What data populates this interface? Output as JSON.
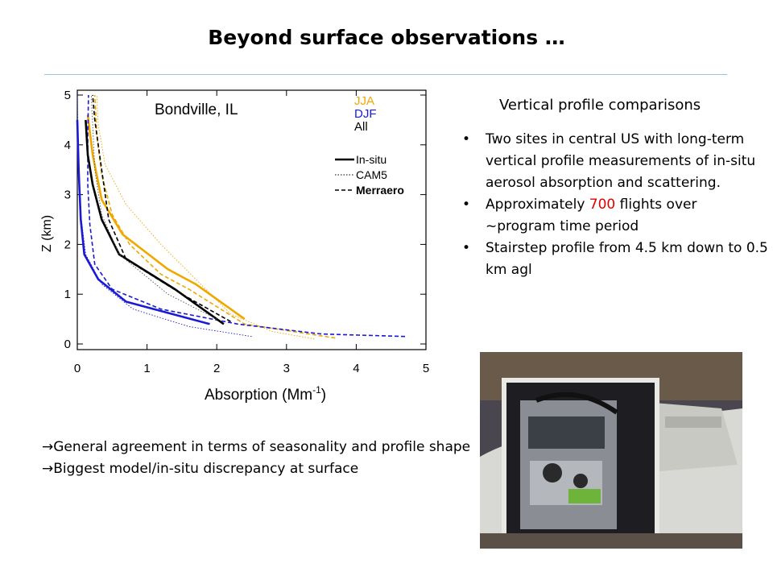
{
  "slide": {
    "title": "Beyond surface observations …",
    "heading": "Vertical profile comparisons",
    "bullets": [
      {
        "pre": "Two sites in central US with long-term vertical profile measurements of in-situ aerosol absorption and scattering.",
        "hl": "",
        "post": ""
      },
      {
        "pre": "Approximately ",
        "hl": "700",
        "post": " flights over ~program time period"
      },
      {
        "pre": "Stairstep profile from 4.5 km down to 0.5 km agl",
        "hl": "",
        "post": ""
      }
    ],
    "notes": [
      "→General agreement in terms of seasonality and profile shape",
      "→Biggest model/in-situ discrepancy at surface"
    ],
    "photo_description": "Photo: instrument rack in open aircraft door"
  },
  "chart_data": {
    "type": "line",
    "title": "Bondville, IL",
    "xlabel_main": "Absorption (Mm",
    "xlabel_sup": "-1",
    "xlabel_end": ")",
    "ylabel": "Z (km)",
    "xlim": [
      0,
      5
    ],
    "ylim": [
      0,
      5
    ],
    "xticks": [
      0,
      1,
      2,
      3,
      4,
      5
    ],
    "yticks": [
      0,
      1,
      2,
      3,
      4,
      5
    ],
    "season_legend": [
      {
        "label": "JJA",
        "color": "#f0a800"
      },
      {
        "label": "DJF",
        "color": "#1a1ad6"
      },
      {
        "label": "All",
        "color": "#000000"
      }
    ],
    "style_legend": [
      {
        "label": "In-situ",
        "style": "solid"
      },
      {
        "label": "CAM5",
        "style": "dotted"
      },
      {
        "label": "Merraero",
        "style": "dashed"
      }
    ],
    "series": [
      {
        "season": "JJA",
        "source": "In-situ",
        "color": "#f0a800",
        "style": "solid",
        "points": [
          [
            2.4,
            0.5
          ],
          [
            1.7,
            1.2
          ],
          [
            1.3,
            1.5
          ],
          [
            0.65,
            2.2
          ],
          [
            0.35,
            2.9
          ],
          [
            0.22,
            3.8
          ],
          [
            0.15,
            4.6
          ]
        ]
      },
      {
        "season": "JJA",
        "source": "Merraero",
        "color": "#f0a800",
        "style": "dashed",
        "points": [
          [
            3.7,
            0.12
          ],
          [
            3.1,
            0.25
          ],
          [
            2.4,
            0.4
          ],
          [
            1.6,
            1.1
          ],
          [
            1.2,
            1.4
          ],
          [
            0.75,
            2.0
          ],
          [
            0.5,
            2.6
          ],
          [
            0.35,
            3.4
          ],
          [
            0.28,
            4.2
          ],
          [
            0.25,
            5.0
          ]
        ]
      },
      {
        "season": "JJA",
        "source": "CAM5",
        "color": "#f0a800",
        "style": "dotted",
        "points": [
          [
            3.4,
            0.1
          ],
          [
            2.8,
            0.25
          ],
          [
            2.2,
            0.6
          ],
          [
            1.7,
            1.3
          ],
          [
            1.2,
            2.0
          ],
          [
            0.7,
            2.8
          ],
          [
            0.4,
            3.6
          ],
          [
            0.3,
            4.4
          ],
          [
            0.28,
            5.0
          ]
        ]
      },
      {
        "season": "DJF",
        "source": "In-situ",
        "color": "#1a1ad6",
        "style": "solid",
        "points": [
          [
            1.9,
            0.4
          ],
          [
            0.7,
            0.85
          ],
          [
            0.3,
            1.3
          ],
          [
            0.1,
            1.8
          ],
          [
            0.05,
            2.5
          ],
          [
            0.02,
            3.5
          ],
          [
            0.0,
            4.5
          ]
        ]
      },
      {
        "season": "DJF",
        "source": "Merraero",
        "color": "#1a1ad6",
        "style": "dashed",
        "points": [
          [
            4.7,
            0.15
          ],
          [
            3.5,
            0.2
          ],
          [
            2.3,
            0.4
          ],
          [
            1.2,
            0.7
          ],
          [
            0.5,
            1.1
          ],
          [
            0.25,
            1.6
          ],
          [
            0.18,
            2.4
          ],
          [
            0.15,
            3.2
          ],
          [
            0.15,
            4.2
          ],
          [
            0.16,
            5.0
          ]
        ]
      },
      {
        "season": "DJF",
        "source": "CAM5",
        "color": "#1a1ad6",
        "style": "dotted",
        "points": [
          [
            2.5,
            0.15
          ],
          [
            1.6,
            0.35
          ],
          [
            0.8,
            0.7
          ],
          [
            0.35,
            1.2
          ],
          [
            0.12,
            1.8
          ],
          [
            0.05,
            2.6
          ],
          [
            0.02,
            3.4
          ],
          [
            0.01,
            4.2
          ],
          [
            0.0,
            5.0
          ]
        ]
      },
      {
        "season": "All",
        "source": "In-situ",
        "color": "#000000",
        "style": "solid",
        "points": [
          [
            2.1,
            0.4
          ],
          [
            1.4,
            1.1
          ],
          [
            0.6,
            1.8
          ],
          [
            0.35,
            2.5
          ],
          [
            0.22,
            3.2
          ],
          [
            0.15,
            3.8
          ],
          [
            0.12,
            4.5
          ]
        ]
      },
      {
        "season": "All",
        "source": "Merraero",
        "color": "#000000",
        "style": "dashed",
        "points": [
          [
            2.2,
            0.45
          ],
          [
            1.5,
            1.0
          ],
          [
            0.7,
            1.7
          ],
          [
            0.45,
            2.5
          ],
          [
            0.35,
            3.5
          ],
          [
            0.25,
            4.5
          ],
          [
            0.22,
            5.0
          ]
        ]
      },
      {
        "season": "All",
        "source": "CAM5",
        "color": "#555555",
        "style": "dotted",
        "points": [
          [
            2.0,
            0.5
          ],
          [
            1.3,
            1.0
          ],
          [
            0.6,
            1.8
          ],
          [
            0.35,
            2.6
          ],
          [
            0.25,
            3.5
          ],
          [
            0.22,
            4.4
          ],
          [
            0.2,
            5.0
          ]
        ]
      }
    ]
  }
}
